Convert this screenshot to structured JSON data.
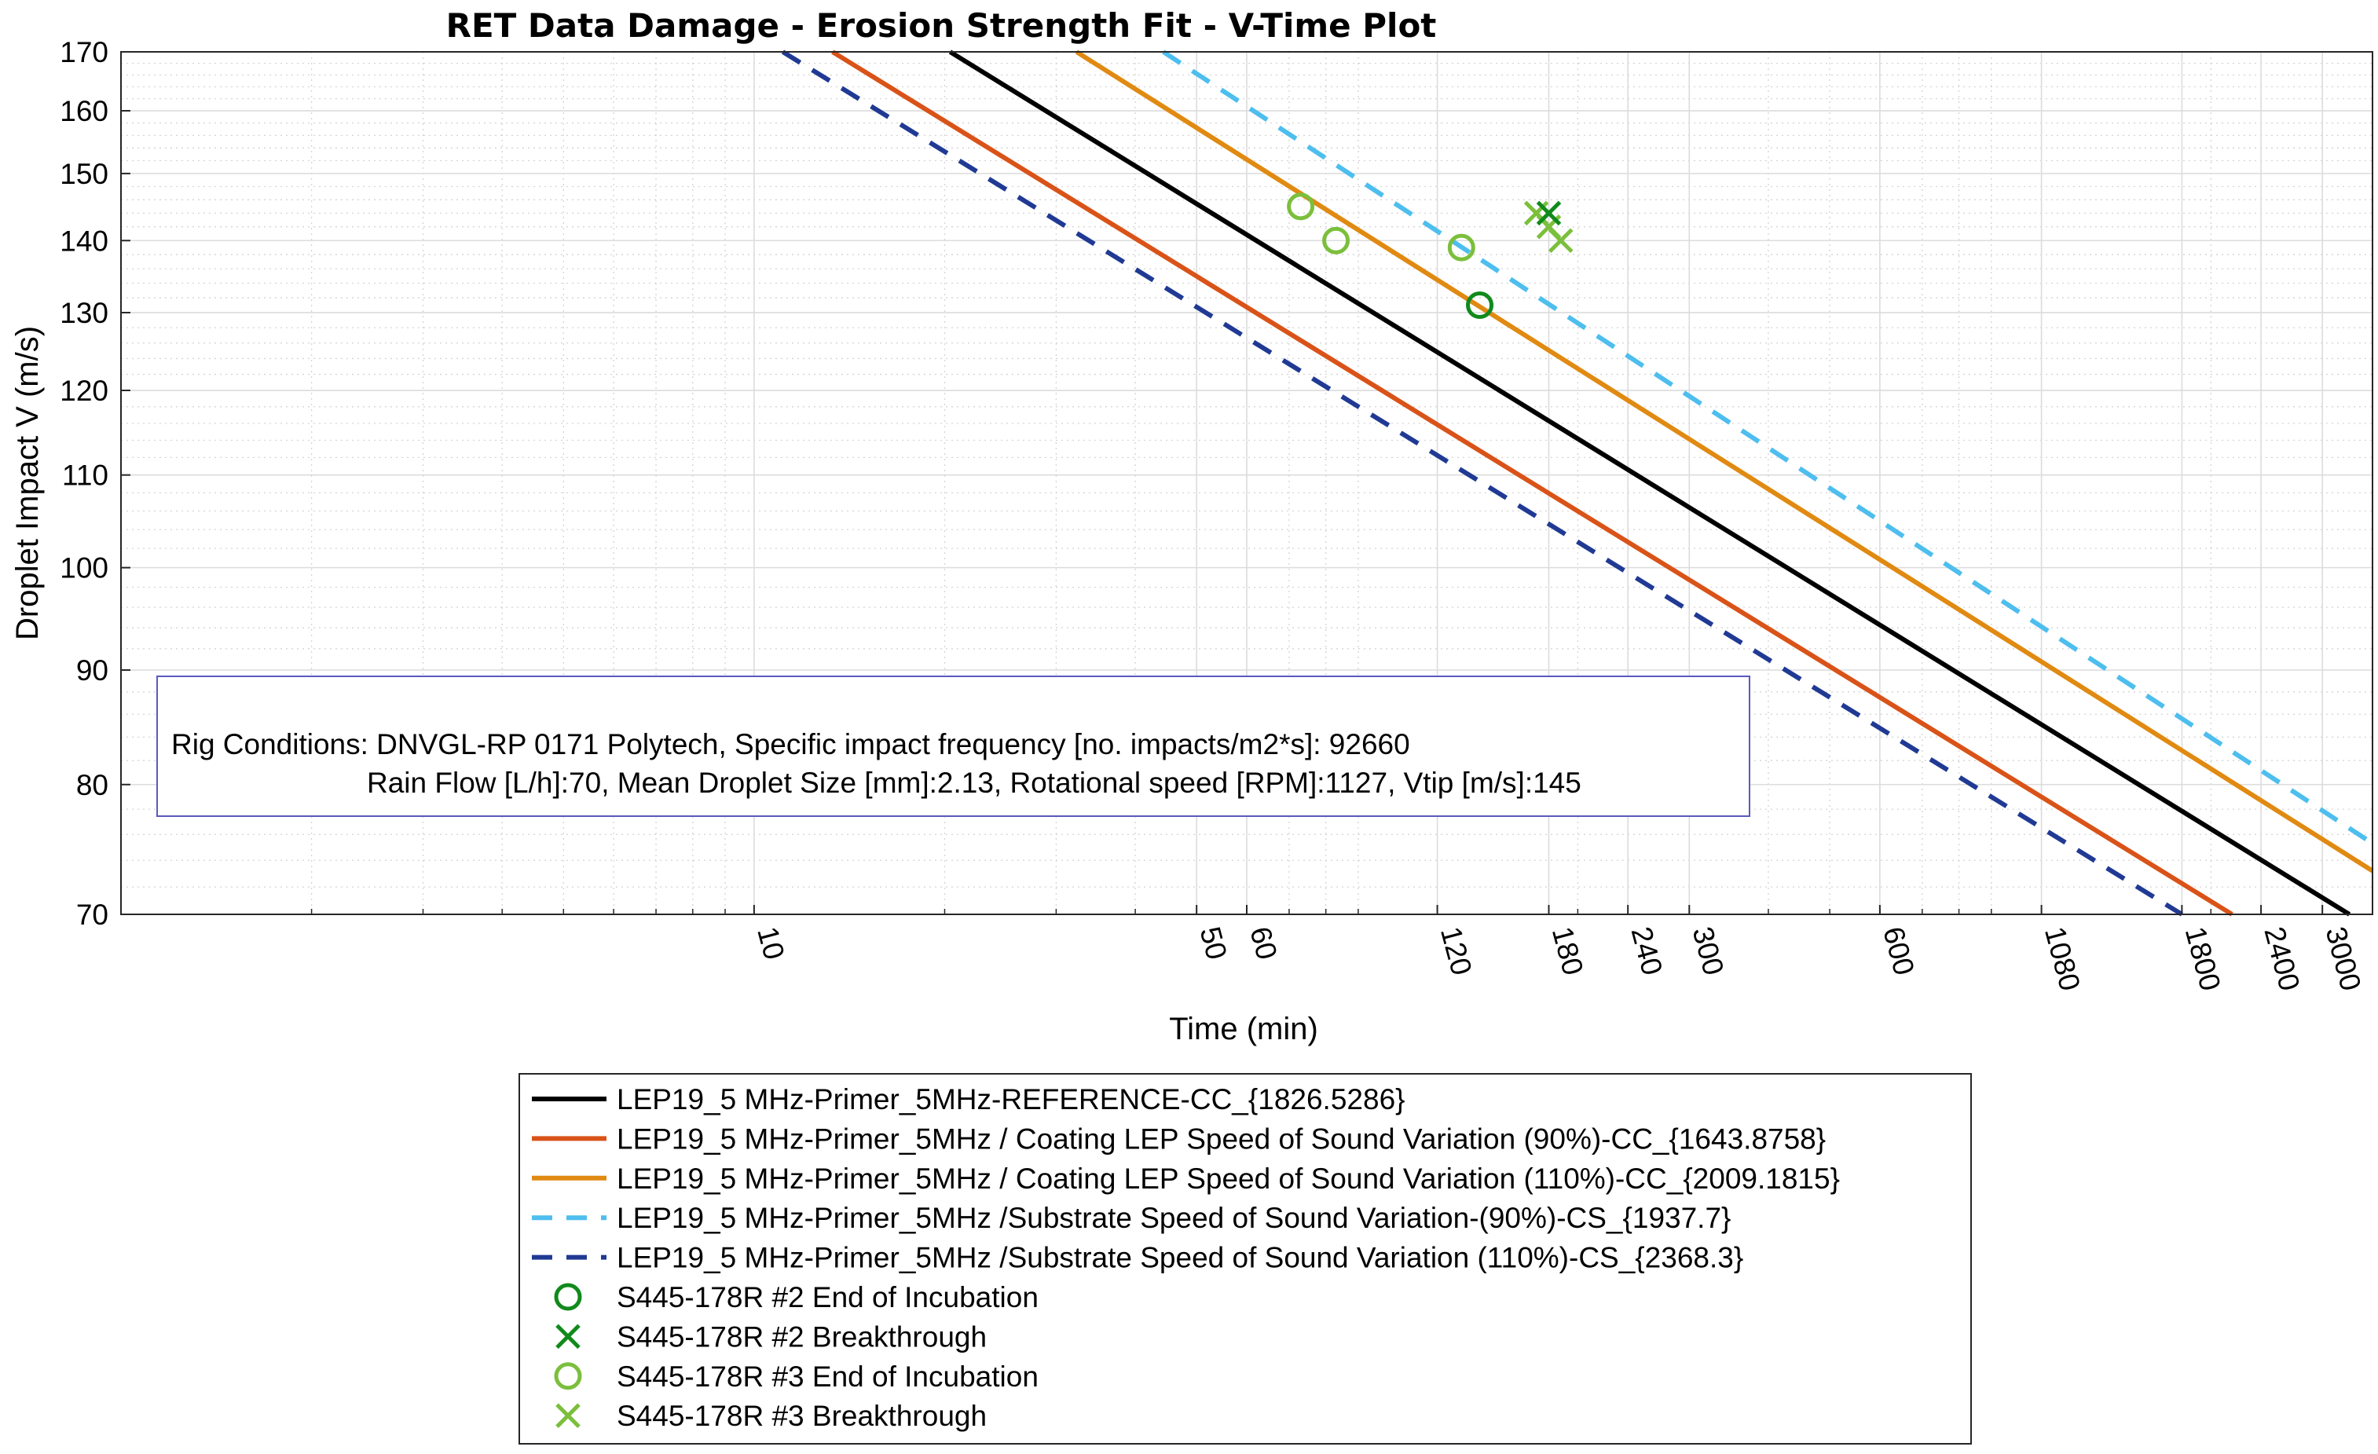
{
  "chart_data": {
    "type": "line",
    "title": "RET Data Damage - Erosion Strength Fit - V-Time Plot",
    "xlabel": "Time (min)",
    "ylabel": "Droplet Impact V (m/s)",
    "xscale": "log",
    "yscale": "log",
    "xlim": [
      1,
      3600
    ],
    "ylim": [
      70,
      170
    ],
    "grid": true,
    "x_tick_labels": [
      "10",
      "50",
      "60",
      "120",
      "180",
      "240",
      "300",
      "600",
      "1080",
      "1800",
      "2400",
      "3000"
    ],
    "x_ticks": [
      10,
      50,
      60,
      120,
      180,
      240,
      300,
      600,
      1080,
      1800,
      2400,
      3000
    ],
    "y_tick_labels": [
      "70",
      "80",
      "90",
      "100",
      "110",
      "120",
      "130",
      "140",
      "150",
      "160",
      "170"
    ],
    "y_ticks": [
      70,
      80,
      90,
      100,
      110,
      120,
      130,
      140,
      150,
      160,
      170
    ],
    "series": [
      {
        "name": "LEP19_5 MHz-Primer_5MHz-REFERENCE-CC_{1826.5286}",
        "style": "solid",
        "color": "#000000",
        "x": [
          20.4,
          3310
        ],
        "y": [
          170,
          70
        ]
      },
      {
        "name": "LEP19_5 MHz-Primer_5MHz / Coating LEP Speed of Sound Variation (90%)-CC_{1643.8758}",
        "style": "solid",
        "color": "#d95319",
        "x": [
          13.3,
          2160
        ],
        "y": [
          170,
          70
        ]
      },
      {
        "name": "LEP19_5 MHz-Primer_5MHz / Coating LEP Speed of Sound Variation (110%)-CC_{2009.1815}",
        "style": "solid",
        "color": "#e08a12",
        "x": [
          32.3,
          3600
        ],
        "y": [
          170,
          73.2
        ]
      },
      {
        "name": "LEP19_5 MHz-Primer_5MHz /Substrate Speed of Sound Variation-(90%)-CS_{1937.7}",
        "style": "dashed",
        "color": "#4dbeee",
        "x": [
          44.3,
          3600
        ],
        "y": [
          170,
          75.3
        ]
      },
      {
        "name": "LEP19_5 MHz-Primer_5MHz /Substrate Speed of Sound Variation (110%)-CS_{2368.3}",
        "style": "dashed",
        "color": "#203a94",
        "x": [
          11.1,
          1800
        ],
        "y": [
          170,
          70
        ]
      }
    ],
    "markers": [
      {
        "name": "S445-178R #2 End of Incubation",
        "shape": "circle",
        "color": "#118a1c",
        "x": [
          140
        ],
        "y": [
          131
        ]
      },
      {
        "name": "S445-178R #2 Breakthrough",
        "shape": "x",
        "color": "#118a1c",
        "x": [
          180
        ],
        "y": [
          144
        ]
      },
      {
        "name": "S445-178R #3 End of Incubation",
        "shape": "circle",
        "color": "#7bbf3c",
        "x": [
          73,
          83,
          131
        ],
        "y": [
          145,
          140,
          139
        ]
      },
      {
        "name": "S445-178R #3 Breakthrough",
        "shape": "x",
        "color": "#7bbf3c",
        "x": [
          172,
          180,
          188
        ],
        "y": [
          144,
          142,
          140
        ]
      }
    ],
    "legend_position": "bottom-outside",
    "annotation": {
      "line1": "Rig Conditions: DNVGL-RP 0171 Polytech,  Specific impact frequency [no. impacts/m2*s]: 92660",
      "line2": "Rain Flow [L/h]:70, Mean Droplet Size [mm]:2.13, Rotational speed [RPM]:1127, Vtip [m/s]:145",
      "position": "lower-left"
    }
  }
}
